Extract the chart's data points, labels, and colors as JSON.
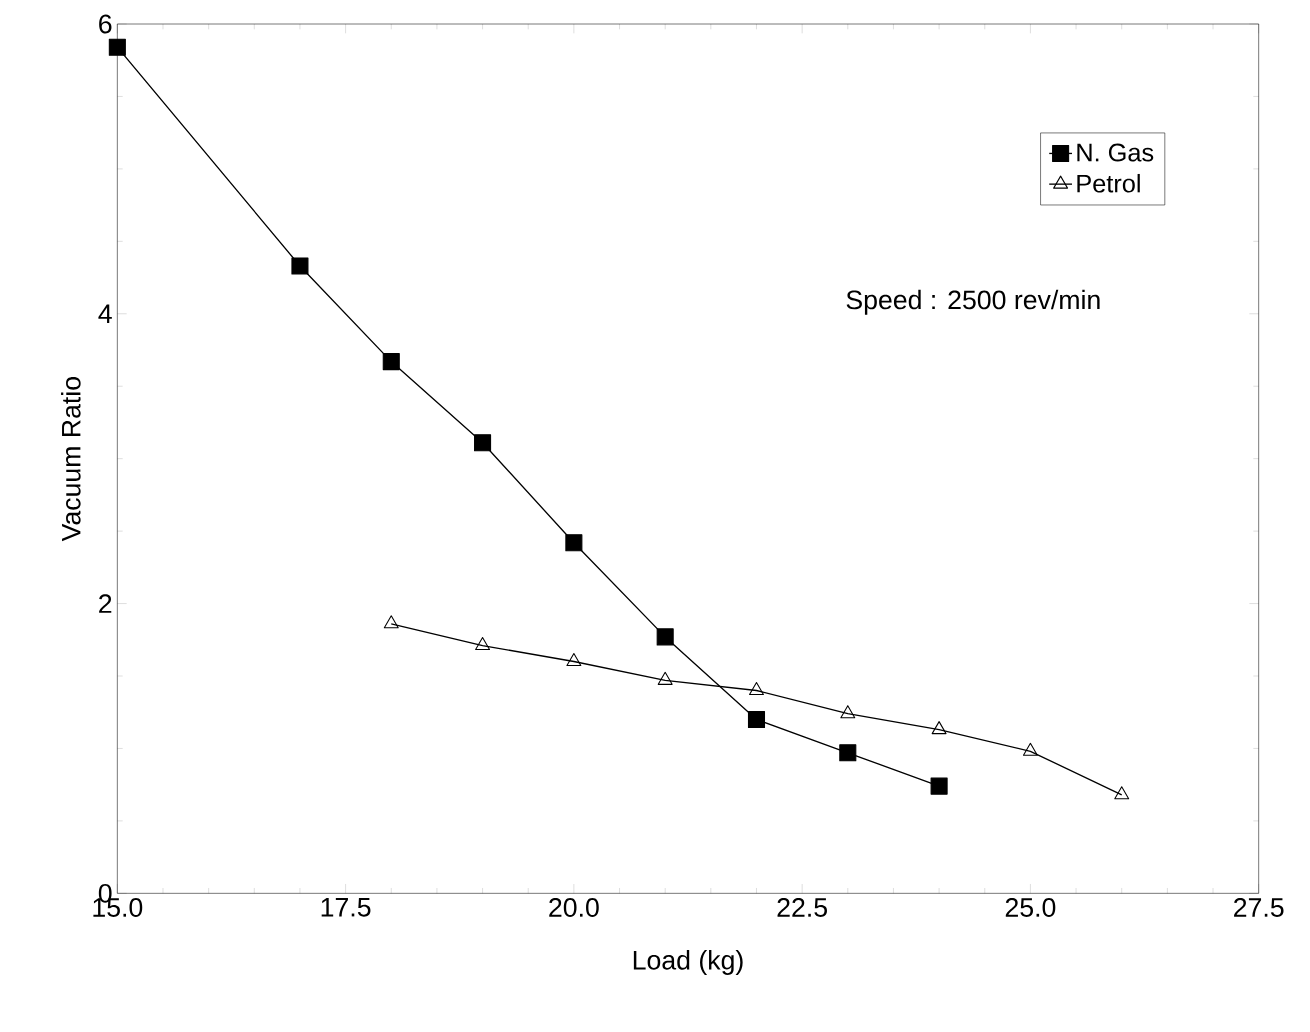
{
  "chart_data": {
    "type": "line",
    "xlabel": "Load (kg)",
    "ylabel": "Vacuum Ratio",
    "xlim": [
      15,
      27.5
    ],
    "ylim": [
      0,
      6
    ],
    "xticks": [
      {
        "value": 15,
        "label": "15.0"
      },
      {
        "value": 17.5,
        "label": "17.5"
      },
      {
        "value": 20,
        "label": "20.0"
      },
      {
        "value": 22.5,
        "label": "22.5"
      },
      {
        "value": 25,
        "label": "25.0"
      },
      {
        "value": 27.5,
        "label": "27.5"
      }
    ],
    "yticks": [
      0,
      2,
      4,
      6
    ],
    "legend": "top right",
    "annotations": [
      "Speed : 2500 rev/min"
    ],
    "series": [
      {
        "name": "N. Gas",
        "color": "#000000",
        "marker": "square",
        "x": [
          15,
          17,
          18,
          19,
          20,
          21,
          22,
          23,
          24
        ],
        "values": [
          5.84,
          4.33,
          3.67,
          3.11,
          2.42,
          1.77,
          1.2,
          0.97,
          0.74
        ]
      },
      {
        "name": "Petrol",
        "color": "#000000",
        "marker": "triangle",
        "x": [
          18,
          19,
          20,
          21,
          22,
          23,
          24,
          25,
          26
        ],
        "values": [
          1.86,
          1.71,
          1.6,
          1.47,
          1.4,
          1.24,
          1.13,
          0.98,
          0.68
        ]
      }
    ]
  }
}
